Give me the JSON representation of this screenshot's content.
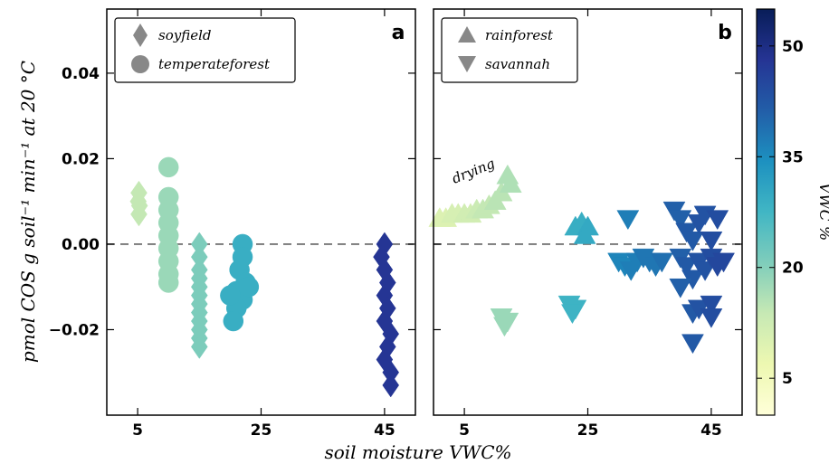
{
  "chart_data": [
    {
      "type": "scatter",
      "panel_label": "a",
      "ylabel": "pmol COS g  soil⁻¹  min⁻¹  at 20 °C",
      "xlim": [
        0,
        50
      ],
      "ylim": [
        -0.04,
        0.055
      ],
      "xticks": [
        5,
        25,
        45
      ],
      "yticks": [
        -0.02,
        0.0,
        0.02,
        0.04
      ],
      "ytick_labels": [
        "−0.02",
        "0.00",
        "0.02",
        "0.04"
      ],
      "reference_line_y": 0,
      "legend": {
        "position": "top-left",
        "entries": [
          {
            "label": "soyfield",
            "marker": "diamond"
          },
          {
            "label": "temperateforest",
            "marker": "circle"
          }
        ]
      },
      "series": [
        {
          "name": "soyfield",
          "marker": "diamond",
          "points": [
            {
              "x": 5.2,
              "y": 0.012,
              "vwc": 14
            },
            {
              "x": 5.1,
              "y": 0.01,
              "vwc": 14
            },
            {
              "x": 5.3,
              "y": 0.009,
              "vwc": 14
            },
            {
              "x": 5.2,
              "y": 0.007,
              "vwc": 14
            },
            {
              "x": 15,
              "y": 0.0,
              "vwc": 21
            },
            {
              "x": 15,
              "y": -0.003,
              "vwc": 21
            },
            {
              "x": 15,
              "y": -0.006,
              "vwc": 21
            },
            {
              "x": 15,
              "y": -0.008,
              "vwc": 21
            },
            {
              "x": 15,
              "y": -0.01,
              "vwc": 21
            },
            {
              "x": 15,
              "y": -0.012,
              "vwc": 21
            },
            {
              "x": 15,
              "y": -0.014,
              "vwc": 21
            },
            {
              "x": 15,
              "y": -0.016,
              "vwc": 21
            },
            {
              "x": 15,
              "y": -0.018,
              "vwc": 21
            },
            {
              "x": 15,
              "y": -0.02,
              "vwc": 21
            },
            {
              "x": 15,
              "y": -0.022,
              "vwc": 21
            },
            {
              "x": 15,
              "y": -0.024,
              "vwc": 21
            },
            {
              "x": 45,
              "y": 0.0,
              "vwc": 48
            },
            {
              "x": 44.5,
              "y": -0.003,
              "vwc": 48
            },
            {
              "x": 45,
              "y": -0.006,
              "vwc": 48
            },
            {
              "x": 45.5,
              "y": -0.009,
              "vwc": 48
            },
            {
              "x": 45,
              "y": -0.012,
              "vwc": 48
            },
            {
              "x": 45.5,
              "y": -0.015,
              "vwc": 48
            },
            {
              "x": 45,
              "y": -0.018,
              "vwc": 48
            },
            {
              "x": 46,
              "y": -0.021,
              "vwc": 48
            },
            {
              "x": 45.5,
              "y": -0.024,
              "vwc": 48
            },
            {
              "x": 45,
              "y": -0.027,
              "vwc": 48
            },
            {
              "x": 46,
              "y": -0.03,
              "vwc": 48
            },
            {
              "x": 46,
              "y": -0.033,
              "vwc": 48
            }
          ]
        },
        {
          "name": "temperateforest",
          "marker": "circle",
          "points": [
            {
              "x": 10,
              "y": 0.018,
              "vwc": 18
            },
            {
              "x": 10,
              "y": 0.011,
              "vwc": 18
            },
            {
              "x": 10,
              "y": 0.008,
              "vwc": 18
            },
            {
              "x": 10,
              "y": 0.005,
              "vwc": 18
            },
            {
              "x": 10,
              "y": 0.002,
              "vwc": 18
            },
            {
              "x": 10,
              "y": -0.001,
              "vwc": 18
            },
            {
              "x": 10,
              "y": -0.004,
              "vwc": 18
            },
            {
              "x": 10,
              "y": -0.007,
              "vwc": 18
            },
            {
              "x": 10,
              "y": -0.009,
              "vwc": 18
            },
            {
              "x": 22,
              "y": 0.0,
              "vwc": 29
            },
            {
              "x": 22,
              "y": -0.003,
              "vwc": 29
            },
            {
              "x": 21.5,
              "y": -0.006,
              "vwc": 29
            },
            {
              "x": 22.5,
              "y": -0.009,
              "vwc": 29
            },
            {
              "x": 21,
              "y": -0.011,
              "vwc": 29
            },
            {
              "x": 22,
              "y": -0.013,
              "vwc": 29
            },
            {
              "x": 21,
              "y": -0.015,
              "vwc": 29
            },
            {
              "x": 20.5,
              "y": -0.018,
              "vwc": 29
            },
            {
              "x": 23,
              "y": -0.01,
              "vwc": 29
            },
            {
              "x": 20,
              "y": -0.012,
              "vwc": 29
            }
          ]
        }
      ]
    },
    {
      "type": "scatter",
      "panel_label": "b",
      "xlabel": "soil moisture VWC%",
      "xlim": [
        0,
        50
      ],
      "ylim": [
        -0.04,
        0.055
      ],
      "xticks": [
        5,
        25,
        45
      ],
      "reference_line_y": 0,
      "annotation": "drying",
      "legend": {
        "position": "top-left",
        "entries": [
          {
            "label": "rainforest",
            "marker": "triangle-up"
          },
          {
            "label": "savannah",
            "marker": "triangle-down"
          }
        ]
      },
      "series": [
        {
          "name": "rainforest",
          "marker": "triangle-up",
          "points": [
            {
              "x": 1,
              "y": 0.006,
              "vwc": 10
            },
            {
              "x": 2,
              "y": 0.006,
              "vwc": 10
            },
            {
              "x": 3,
              "y": 0.007,
              "vwc": 11
            },
            {
              "x": 4,
              "y": 0.007,
              "vwc": 11
            },
            {
              "x": 5,
              "y": 0.007,
              "vwc": 12
            },
            {
              "x": 6,
              "y": 0.007,
              "vwc": 12
            },
            {
              "x": 7,
              "y": 0.008,
              "vwc": 13
            },
            {
              "x": 8,
              "y": 0.008,
              "vwc": 14
            },
            {
              "x": 9,
              "y": 0.009,
              "vwc": 14
            },
            {
              "x": 10,
              "y": 0.01,
              "vwc": 15
            },
            {
              "x": 11,
              "y": 0.012,
              "vwc": 15
            },
            {
              "x": 12,
              "y": 0.016,
              "vwc": 16
            },
            {
              "x": 12.5,
              "y": 0.014,
              "vwc": 16
            },
            {
              "x": 23,
              "y": 0.004,
              "vwc": 29
            },
            {
              "x": 24,
              "y": 0.005,
              "vwc": 29
            },
            {
              "x": 25,
              "y": 0.004,
              "vwc": 30
            },
            {
              "x": 24.5,
              "y": 0.002,
              "vwc": 30
            }
          ]
        },
        {
          "name": "savannah",
          "marker": "triangle-down",
          "points": [
            {
              "x": 11,
              "y": -0.017,
              "vwc": 18
            },
            {
              "x": 12,
              "y": -0.018,
              "vwc": 18
            },
            {
              "x": 11.5,
              "y": -0.019,
              "vwc": 18
            },
            {
              "x": 22,
              "y": -0.014,
              "vwc": 28
            },
            {
              "x": 23,
              "y": -0.015,
              "vwc": 28
            },
            {
              "x": 22.5,
              "y": -0.016,
              "vwc": 28
            },
            {
              "x": 30,
              "y": -0.004,
              "vwc": 36
            },
            {
              "x": 31,
              "y": -0.005,
              "vwc": 36
            },
            {
              "x": 32,
              "y": -0.006,
              "vwc": 37
            },
            {
              "x": 31.5,
              "y": 0.006,
              "vwc": 37
            },
            {
              "x": 33,
              "y": -0.004,
              "vwc": 37
            },
            {
              "x": 34,
              "y": -0.003,
              "vwc": 38
            },
            {
              "x": 35,
              "y": -0.004,
              "vwc": 38
            },
            {
              "x": 36,
              "y": -0.005,
              "vwc": 38
            },
            {
              "x": 37,
              "y": -0.004,
              "vwc": 39
            },
            {
              "x": 39,
              "y": 0.008,
              "vwc": 41
            },
            {
              "x": 40,
              "y": 0.006,
              "vwc": 41
            },
            {
              "x": 41,
              "y": 0.003,
              "vwc": 42
            },
            {
              "x": 42,
              "y": 0.001,
              "vwc": 42
            },
            {
              "x": 43,
              "y": 0.005,
              "vwc": 43
            },
            {
              "x": 44,
              "y": 0.007,
              "vwc": 43
            },
            {
              "x": 45,
              "y": 0.001,
              "vwc": 44
            },
            {
              "x": 46,
              "y": 0.006,
              "vwc": 44
            },
            {
              "x": 40,
              "y": -0.003,
              "vwc": 41
            },
            {
              "x": 41,
              "y": -0.005,
              "vwc": 42
            },
            {
              "x": 42,
              "y": -0.008,
              "vwc": 42
            },
            {
              "x": 43,
              "y": -0.004,
              "vwc": 43
            },
            {
              "x": 44,
              "y": -0.006,
              "vwc": 43
            },
            {
              "x": 45,
              "y": -0.003,
              "vwc": 44
            },
            {
              "x": 46,
              "y": -0.005,
              "vwc": 45
            },
            {
              "x": 47,
              "y": -0.004,
              "vwc": 45
            },
            {
              "x": 40,
              "y": -0.01,
              "vwc": 41
            },
            {
              "x": 42,
              "y": -0.016,
              "vwc": 42
            },
            {
              "x": 43,
              "y": -0.015,
              "vwc": 43
            },
            {
              "x": 45,
              "y": -0.014,
              "vwc": 44
            },
            {
              "x": 45,
              "y": -0.017,
              "vwc": 44
            },
            {
              "x": 42,
              "y": -0.023,
              "vwc": 42
            }
          ]
        }
      ]
    }
  ],
  "colorbar": {
    "label": "VWC %",
    "range": [
      0,
      55
    ],
    "ticks": [
      5,
      20,
      35,
      50
    ],
    "colors": [
      "#ffffd9",
      "#edf8b1",
      "#c7e9b4",
      "#7fcdbb",
      "#41b6c4",
      "#1d91c0",
      "#225ea8",
      "#253494",
      "#081d58"
    ]
  }
}
